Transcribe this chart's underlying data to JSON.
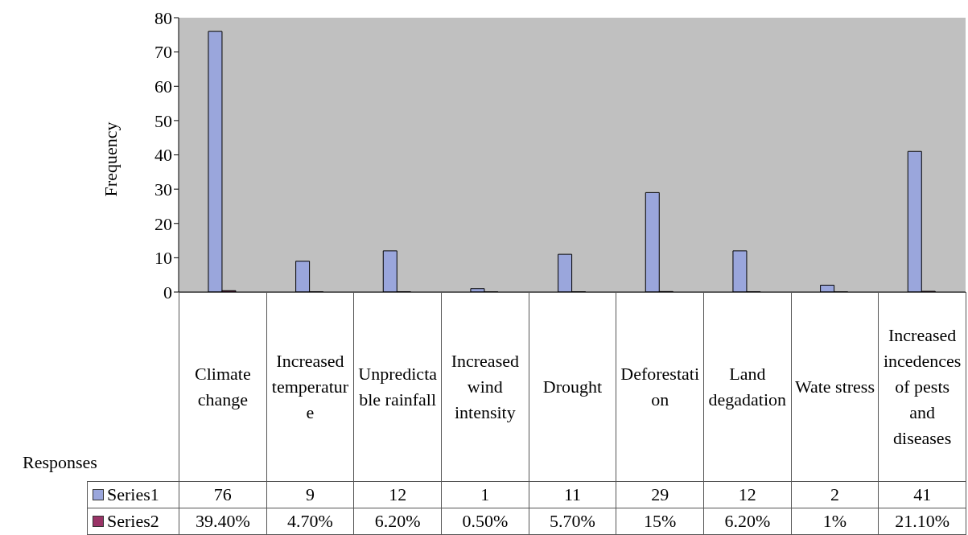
{
  "chart_data": {
    "type": "bar",
    "xlabel": "Responses",
    "ylabel": "Frequency",
    "categories": [
      "Climate change",
      "Increased temperature",
      "Unpredictable rainfall",
      "Increased wind intensity",
      "Drought",
      "Deforestation",
      "Land degadation",
      "Wate stress",
      "Increased incedences of pests and diseases"
    ],
    "series": [
      {
        "name": "Series1",
        "color": "#9aa6dc",
        "values": [
          76,
          9,
          12,
          1,
          11,
          29,
          12,
          2,
          41
        ],
        "value_labels": [
          "76",
          "9",
          "12",
          "1",
          "11",
          "29",
          "12",
          "2",
          "41"
        ]
      },
      {
        "name": "Series2",
        "color": "#993366",
        "values": [
          0.394,
          0.047,
          0.062,
          0.005,
          0.057,
          0.15,
          0.062,
          0.01,
          0.211
        ],
        "value_labels": [
          "39.40%",
          "4.70%",
          "6.20%",
          "0.50%",
          "5.70%",
          "15%",
          "6.20%",
          "1%",
          "21.10%"
        ]
      }
    ],
    "ylim": [
      0,
      80
    ],
    "yticks": [
      0,
      10,
      20,
      30,
      40,
      50,
      60,
      70,
      80
    ],
    "grid": false,
    "legend": "bottom"
  }
}
